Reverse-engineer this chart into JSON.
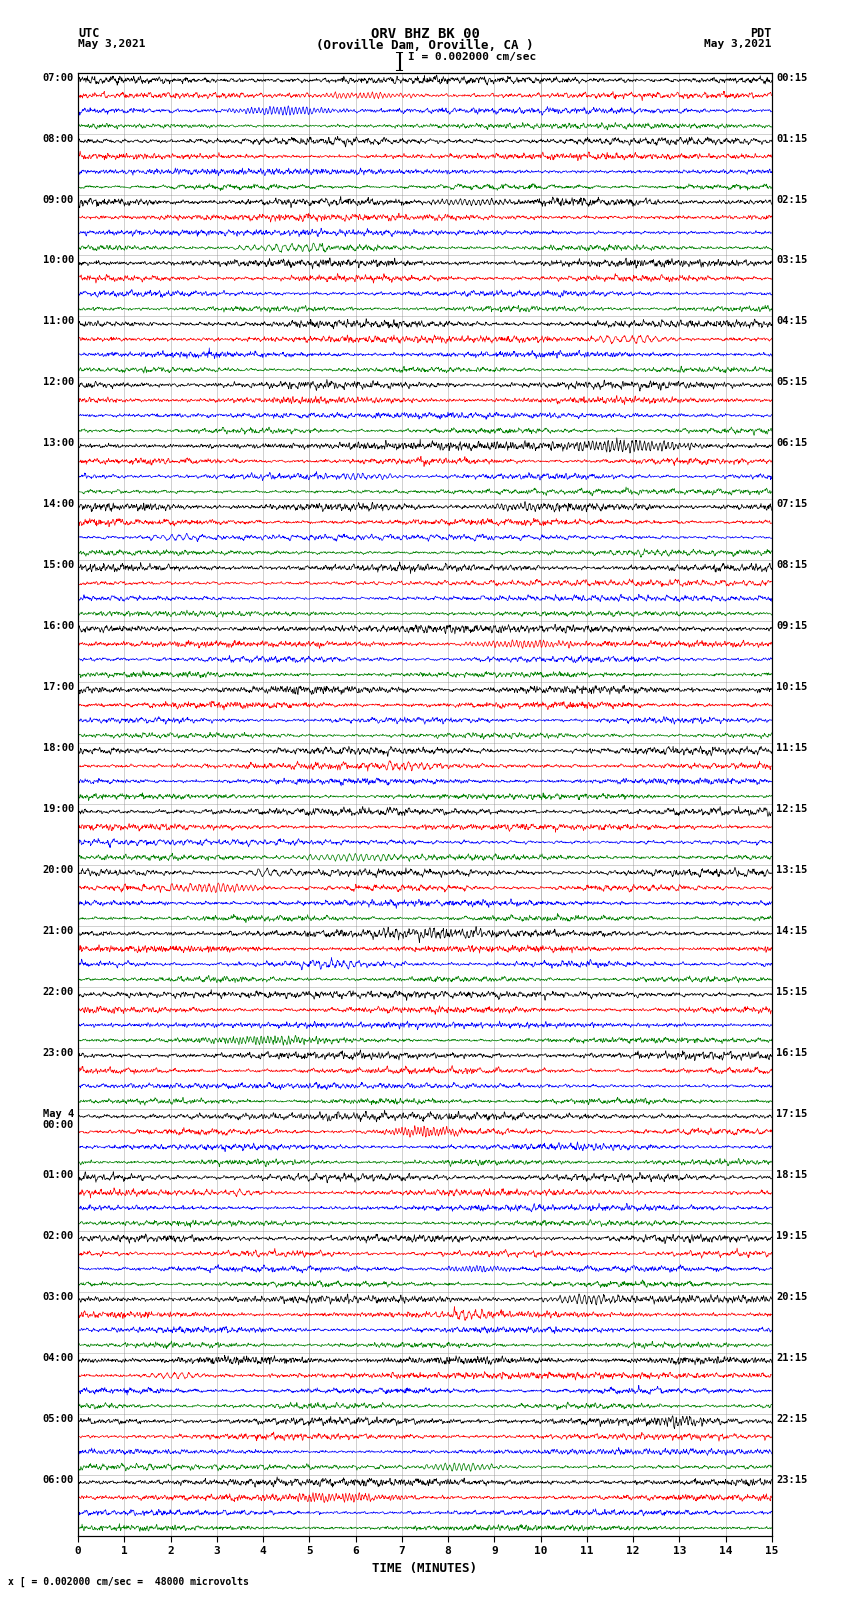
{
  "title_line1": "ORV BHZ BK 00",
  "title_line2": "(Oroville Dam, Oroville, CA )",
  "scale_label": "I = 0.002000 cm/sec",
  "bottom_label": "x [ = 0.002000 cm/sec =  48000 microvolts",
  "xlabel": "TIME (MINUTES)",
  "x_ticks": [
    0,
    1,
    2,
    3,
    4,
    5,
    6,
    7,
    8,
    9,
    10,
    11,
    12,
    13,
    14,
    15
  ],
  "x_min": 0,
  "x_max": 15,
  "left_times": [
    "07:00",
    "08:00",
    "09:00",
    "10:00",
    "11:00",
    "12:00",
    "13:00",
    "14:00",
    "15:00",
    "16:00",
    "17:00",
    "18:00",
    "19:00",
    "20:00",
    "21:00",
    "22:00",
    "23:00",
    "May 4\n00:00",
    "01:00",
    "02:00",
    "03:00",
    "04:00",
    "05:00",
    "06:00"
  ],
  "right_times": [
    "00:15",
    "01:15",
    "02:15",
    "03:15",
    "04:15",
    "05:15",
    "06:15",
    "07:15",
    "08:15",
    "09:15",
    "10:15",
    "11:15",
    "12:15",
    "13:15",
    "14:15",
    "15:15",
    "16:15",
    "17:15",
    "18:15",
    "19:15",
    "20:15",
    "21:15",
    "22:15",
    "23:15"
  ],
  "n_rows": 24,
  "traces_per_row": 4,
  "colors": [
    "black",
    "red",
    "blue",
    "green"
  ],
  "bg_color": "white",
  "grid_color": "#888888",
  "fig_width": 8.5,
  "fig_height": 16.13,
  "dpi": 100
}
